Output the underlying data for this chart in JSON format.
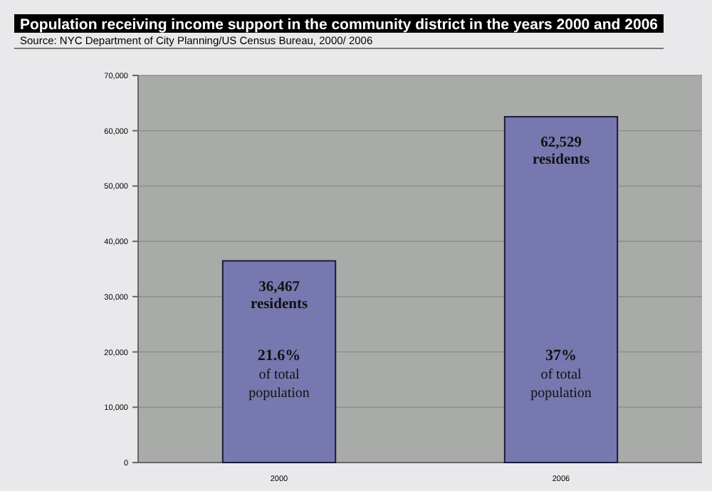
{
  "chart_data": {
    "type": "bar",
    "title": "Population receiving income support in the community district in the years 2000 and 2006",
    "categories": [
      "2000",
      "2006"
    ],
    "values": [
      36467,
      62529
    ],
    "value_labels": [
      "36,467 residents",
      "62,529 residents"
    ],
    "color": "#7878b0",
    "ylim": [
      0,
      70000
    ],
    "yticks": [
      {
        "value": 0,
        "label": "0"
      },
      {
        "value": 10000,
        "label": "10,000"
      },
      {
        "value": 20000,
        "label": "20,000"
      },
      {
        "value": 30000,
        "label": "30,000"
      },
      {
        "value": 40000,
        "label": "40,000"
      },
      {
        "value": 50000,
        "label": "50,000"
      },
      {
        "value": 60000,
        "label": "60,000"
      },
      {
        "value": 70000,
        "label": "70,000"
      }
    ],
    "grid": "y",
    "annotations": [
      "Source: NYC Department of City Planning/US Census Bureau, 2000/ 2006",
      "21.6% of total population",
      "37% of total population"
    ]
  }
}
